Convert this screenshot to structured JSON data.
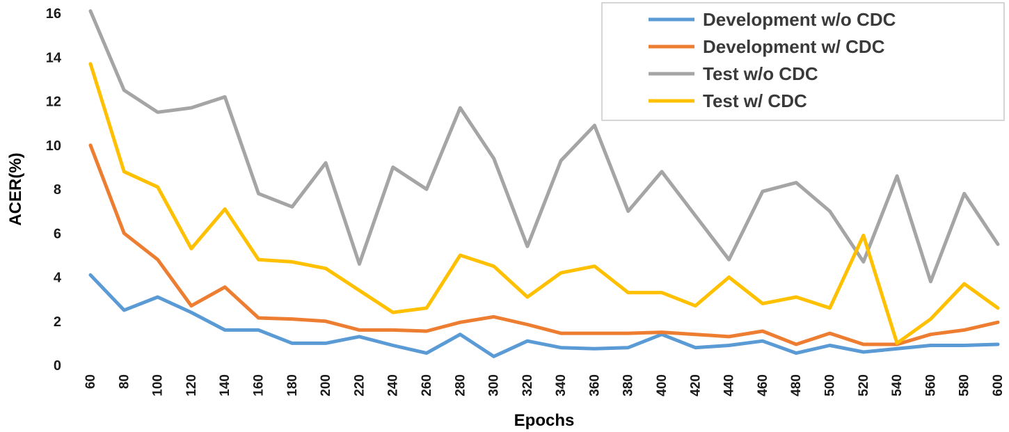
{
  "chart_data": {
    "type": "line",
    "title": "",
    "xlabel": "Epochs",
    "ylabel": "ACER(%)",
    "ylim": [
      0,
      16
    ],
    "yticks": [
      0,
      2,
      4,
      6,
      8,
      10,
      12,
      14,
      16
    ],
    "categories": [
      "60",
      "80",
      "100",
      "120",
      "140",
      "160",
      "180",
      "200",
      "220",
      "240",
      "260",
      "280",
      "300",
      "320",
      "340",
      "360",
      "380",
      "400",
      "420",
      "440",
      "460",
      "480",
      "500",
      "520",
      "540",
      "560",
      "580",
      "600"
    ],
    "grid": false,
    "legend_position": "top-right",
    "series": [
      {
        "name": "Development w/o CDC",
        "color": "#5B9BD5",
        "values": [
          4.1,
          2.5,
          3.1,
          2.4,
          1.6,
          1.6,
          1.0,
          1.0,
          1.3,
          0.9,
          0.55,
          1.4,
          0.4,
          1.1,
          0.8,
          0.75,
          0.8,
          1.4,
          0.8,
          0.9,
          1.1,
          0.55,
          0.9,
          0.6,
          0.75,
          0.9,
          0.9,
          0.95
        ]
      },
      {
        "name": "Development w/ CDC",
        "color": "#ED7D31",
        "values": [
          10.0,
          6.0,
          4.8,
          2.7,
          3.55,
          2.15,
          2.1,
          2.0,
          1.6,
          1.6,
          1.55,
          1.95,
          2.2,
          1.85,
          1.45,
          1.45,
          1.45,
          1.5,
          1.4,
          1.3,
          1.55,
          0.95,
          1.45,
          0.95,
          0.95,
          1.4,
          1.6,
          1.95
        ]
      },
      {
        "name": "Test w/o CDC",
        "color": "#A5A5A5",
        "values": [
          16.1,
          12.5,
          11.5,
          11.7,
          12.2,
          7.8,
          7.2,
          9.2,
          4.6,
          9.0,
          8.0,
          11.7,
          9.4,
          5.4,
          9.3,
          10.9,
          7.0,
          8.8,
          6.8,
          4.8,
          7.9,
          8.3,
          7.0,
          4.7,
          8.6,
          3.8,
          7.8,
          5.5
        ]
      },
      {
        "name": "Test w/ CDC",
        "color": "#FFC000",
        "values": [
          13.7,
          8.8,
          8.1,
          5.3,
          7.1,
          4.8,
          4.7,
          4.4,
          3.4,
          2.4,
          2.6,
          5.0,
          4.5,
          3.1,
          4.2,
          4.5,
          3.3,
          3.3,
          2.7,
          4.0,
          2.8,
          3.1,
          2.6,
          5.9,
          1.0,
          2.1,
          3.7,
          2.6
        ]
      }
    ]
  }
}
